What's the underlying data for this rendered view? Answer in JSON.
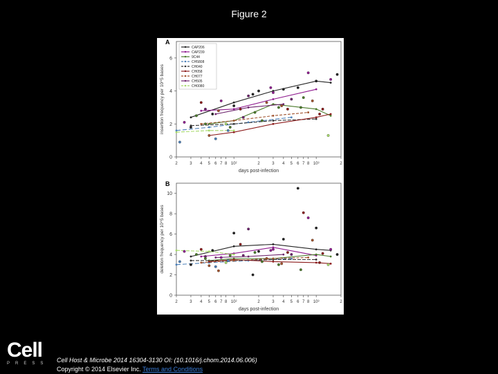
{
  "page": {
    "title": "Figure 2"
  },
  "citation": {
    "journal": "Cell Host & Microbe",
    "details": " 2014 16304-3130 OI: (10.1016/j.chom.2014.06.006)",
    "copyright": "Copyright © 2014 Elsevier Inc.",
    "link_text": "Terms and Conditions"
  },
  "logo": {
    "word": "Cell",
    "press": "PRESS"
  },
  "colors": {
    "background": "#000000",
    "panel": "#ffffff"
  },
  "chart_data": [
    {
      "type": "line",
      "panel": "A",
      "xlabel": "days post-infection",
      "ylabel": "insertion frequency per 10^5 bases",
      "x_scale": "log",
      "xlim": [
        20,
        2000
      ],
      "ylim": [
        0,
        7
      ],
      "yticks": [
        0,
        2,
        4,
        6
      ],
      "xtick_values": [
        20,
        30,
        40,
        50,
        60,
        70,
        80,
        100,
        200,
        300,
        400,
        500,
        600,
        700,
        800,
        1000,
        2000
      ],
      "xtick_labels": [
        "2",
        "3",
        "4",
        "5",
        "6",
        "7",
        "8",
        "10²",
        "2",
        "3",
        "4",
        "5",
        "6",
        "7",
        "8",
        "10³",
        "2"
      ],
      "legend": [
        "CAP206",
        "CAP239",
        "9C44",
        "CH5808",
        "CH040",
        "CH058",
        "CH077",
        "CH505",
        "CH0080"
      ],
      "series": [
        {
          "name": "CAP206",
          "color": "#222222",
          "dash": "",
          "x": [
            30,
            100,
            300,
            1000,
            1500
          ],
          "y": [
            2.4,
            3.3,
            4.0,
            4.6,
            4.5
          ]
        },
        {
          "name": "CAP239",
          "color": "#8e1a8e",
          "dash": "",
          "x": [
            40,
            100,
            300,
            1000
          ],
          "y": [
            2.8,
            2.9,
            3.5,
            4.1
          ]
        },
        {
          "name": "9C44",
          "color": "#4a7a2a",
          "dash": "",
          "x": [
            50,
            100,
            300,
            1000,
            1500
          ],
          "y": [
            2.0,
            2.2,
            3.2,
            2.9,
            2.5
          ]
        },
        {
          "name": "CH5808",
          "color": "#4b7fb8",
          "dash": "6,3",
          "x": [
            20,
            50,
            150,
            500
          ],
          "y": [
            1.6,
            1.8,
            2.1,
            2.4
          ]
        },
        {
          "name": "CH040",
          "color": "#333333",
          "dash": "5,2",
          "x": [
            30,
            100,
            300,
            1000
          ],
          "y": [
            1.9,
            2.0,
            2.2,
            2.3
          ]
        },
        {
          "name": "CH058",
          "color": "#8b1a1a",
          "dash": "",
          "x": [
            50,
            100,
            300,
            1000,
            1500
          ],
          "y": [
            1.3,
            1.5,
            2.0,
            2.4,
            2.6
          ]
        },
        {
          "name": "CH077",
          "color": "#a0522d",
          "dash": "4,2",
          "x": [
            40,
            100,
            300,
            800
          ],
          "y": [
            2.0,
            2.2,
            2.5,
            2.7
          ]
        },
        {
          "name": "CH505",
          "color": "#6a1f6a",
          "dash": "",
          "x": [
            60,
            150,
            400
          ],
          "y": [
            2.6,
            3.0,
            3.2
          ]
        },
        {
          "name": "CH0080",
          "color": "#a6d96a",
          "dash": "5,2",
          "x": [
            20,
            50,
            100
          ],
          "y": [
            1.5,
            1.6,
            1.6
          ]
        }
      ],
      "scatter": {
        "x": [
          22,
          25,
          30,
          35,
          40,
          45,
          50,
          55,
          60,
          70,
          80,
          90,
          100,
          120,
          150,
          180,
          200,
          250,
          300,
          350,
          400,
          450,
          500,
          600,
          700,
          800,
          900,
          1000,
          1200,
          1500,
          1800,
          45,
          65,
          85,
          130,
          170,
          220,
          280,
          380,
          650,
          1100,
          1400
        ],
        "y": [
          0.9,
          2.1,
          1.8,
          2.5,
          3.3,
          2.9,
          1.3,
          2.6,
          1.1,
          3.4,
          2.0,
          1.8,
          3.1,
          2.9,
          3.7,
          2.7,
          4.0,
          3.3,
          3.9,
          3.0,
          4.1,
          2.9,
          3.5,
          4.2,
          3.6,
          5.1,
          3.4,
          4.6,
          2.9,
          4.7,
          5.0,
          2.0,
          2.8,
          1.6,
          2.4,
          3.8,
          2.2,
          4.2,
          3.1,
          3.0,
          2.6,
          1.3
        ],
        "colors": [
          "#4b7fb8",
          "#8e1a8e",
          "#222222",
          "#4a7a2a",
          "#8b1a1a",
          "#6a1f6a",
          "#a0522d",
          "#222222",
          "#4b7fb8",
          "#8e1a8e",
          "#a6d96a",
          "#4a7a2a",
          "#222222",
          "#8b1a1a",
          "#6a1f6a",
          "#4a7a2a",
          "#222222",
          "#a0522d",
          "#8e1a8e",
          "#4a7a2a",
          "#222222",
          "#8b1a1a",
          "#6a1f6a",
          "#222222",
          "#4a7a2a",
          "#8e1a8e",
          "#a0522d",
          "#222222",
          "#8b1a1a",
          "#8e1a8e",
          "#222222",
          "#4a7a2a",
          "#a0522d",
          "#4b7fb8",
          "#6a1f6a",
          "#222222",
          "#4a7a2a",
          "#8e1a8e",
          "#a0522d",
          "#4a7a2a",
          "#8b1a1a",
          "#a6d96a"
        ]
      }
    },
    {
      "type": "line",
      "panel": "B",
      "xlabel": "days post-infection",
      "ylabel": "deletion frequency per 10^5 bases",
      "x_scale": "log",
      "xlim": [
        20,
        2000
      ],
      "ylim": [
        0,
        11
      ],
      "yticks": [
        0,
        2,
        4,
        6,
        8,
        10
      ],
      "xtick_values": [
        20,
        30,
        40,
        50,
        60,
        70,
        80,
        100,
        200,
        300,
        400,
        500,
        600,
        700,
        800,
        1000,
        2000
      ],
      "xtick_labels": [
        "2",
        "3",
        "4",
        "5",
        "6",
        "7",
        "8",
        "10²",
        "2",
        "3",
        "4",
        "5",
        "6",
        "7",
        "8",
        "10³",
        "2"
      ],
      "series": [
        {
          "name": "CAP206",
          "color": "#222222",
          "dash": "",
          "x": [
            30,
            100,
            300,
            1000,
            1500
          ],
          "y": [
            3.8,
            4.8,
            5.0,
            4.5,
            4.4
          ]
        },
        {
          "name": "CAP239",
          "color": "#8e1a8e",
          "dash": "",
          "x": [
            40,
            100,
            300,
            1000
          ],
          "y": [
            3.8,
            4.1,
            4.7,
            3.9
          ]
        },
        {
          "name": "9C44",
          "color": "#4a7a2a",
          "dash": "",
          "x": [
            50,
            100,
            300,
            1000,
            1500
          ],
          "y": [
            3.4,
            3.6,
            3.6,
            4.0,
            3.8
          ]
        },
        {
          "name": "CH5808",
          "color": "#4b7fb8",
          "dash": "6,3",
          "x": [
            20,
            50,
            150,
            500
          ],
          "y": [
            3.0,
            3.2,
            3.4,
            3.6
          ]
        },
        {
          "name": "CH040",
          "color": "#333333",
          "dash": "5,2",
          "x": [
            30,
            100,
            300,
            1000
          ],
          "y": [
            3.4,
            3.4,
            3.5,
            3.5
          ]
        },
        {
          "name": "CH058",
          "color": "#8b1a1a",
          "dash": "",
          "x": [
            50,
            100,
            300,
            1000,
            1500
          ],
          "y": [
            3.3,
            3.5,
            3.3,
            3.2,
            3.1
          ]
        },
        {
          "name": "CH077",
          "color": "#a0522d",
          "dash": "4,2",
          "x": [
            40,
            100,
            300,
            800
          ],
          "y": [
            3.2,
            3.4,
            3.6,
            3.7
          ]
        },
        {
          "name": "CH505",
          "color": "#6a1f6a",
          "dash": "",
          "x": [
            60,
            150,
            400
          ],
          "y": [
            3.7,
            3.8,
            4.0
          ]
        },
        {
          "name": "CH0080",
          "color": "#a6d96a",
          "dash": "5,2",
          "x": [
            20,
            50,
            100
          ],
          "y": [
            4.4,
            4.3,
            4.0
          ]
        }
      ],
      "scatter": {
        "x": [
          22,
          25,
          30,
          35,
          40,
          45,
          50,
          55,
          60,
          70,
          80,
          90,
          100,
          120,
          150,
          180,
          200,
          250,
          300,
          350,
          400,
          450,
          500,
          600,
          700,
          800,
          900,
          1000,
          1200,
          1500,
          1800,
          45,
          65,
          85,
          130,
          170,
          220,
          280,
          380,
          650,
          1100,
          1400
        ],
        "y": [
          3.3,
          4.3,
          3.0,
          4.0,
          4.5,
          3.8,
          2.9,
          4.4,
          2.8,
          3.7,
          3.2,
          3.9,
          6.1,
          5.0,
          6.5,
          4.2,
          4.3,
          3.6,
          4.5,
          3.0,
          5.5,
          4.2,
          4.0,
          10.5,
          8.1,
          7.6,
          5.4,
          6.6,
          4.1,
          4.5,
          4.0,
          3.6,
          2.4,
          3.4,
          3.9,
          2.0,
          3.3,
          4.4,
          3.1,
          2.5,
          3.2,
          3.0
        ],
        "colors": [
          "#4b7fb8",
          "#8e1a8e",
          "#222222",
          "#4a7a2a",
          "#8b1a1a",
          "#6a1f6a",
          "#a0522d",
          "#222222",
          "#4b7fb8",
          "#8e1a8e",
          "#a6d96a",
          "#4a7a2a",
          "#222222",
          "#8b1a1a",
          "#6a1f6a",
          "#4a7a2a",
          "#222222",
          "#a0522d",
          "#8e1a8e",
          "#4a7a2a",
          "#222222",
          "#8b1a1a",
          "#6a1f6a",
          "#222222",
          "#8b1a1a",
          "#8e1a8e",
          "#a0522d",
          "#222222",
          "#8b1a1a",
          "#8e1a8e",
          "#222222",
          "#4a7a2a",
          "#a0522d",
          "#4b7fb8",
          "#6a1f6a",
          "#222222",
          "#4a7a2a",
          "#8e1a8e",
          "#a0522d",
          "#4a7a2a",
          "#8b1a1a",
          "#a6d96a"
        ]
      }
    }
  ]
}
